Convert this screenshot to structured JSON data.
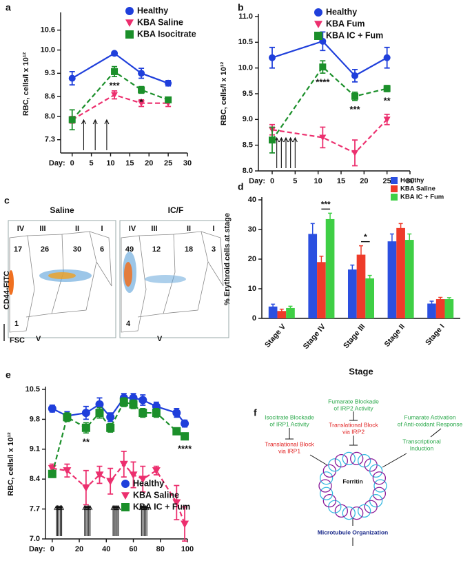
{
  "chart_data": [
    {
      "type": "line",
      "panel": "a",
      "x_label": "Day:",
      "y_label": "RBC, cells/l x 10¹²",
      "x": [
        0,
        11,
        18,
        25
      ],
      "xlim": [
        -3,
        30
      ],
      "xticks": [
        0,
        5,
        10,
        15,
        20,
        25,
        30
      ],
      "ylim": [
        6.9,
        11.05
      ],
      "yticks": [
        7.3,
        {
          "value": 8,
          "label": "8.0"
        },
        8.6,
        9.3,
        {
          "value": 10,
          "label": "10.0"
        },
        10.6
      ],
      "series": [
        {
          "name": "Healthy",
          "color": "#1f3fdb",
          "marker": "circle",
          "dashed": false,
          "values": [
            9.15,
            9.9,
            9.3,
            9.0
          ],
          "errors": [
            0.2,
            0.05,
            0.15,
            0.08
          ]
        },
        {
          "name": "KBA Saline",
          "color": "#ec2f6e",
          "marker": "triangle",
          "dashed": true,
          "values": [
            7.9,
            8.65,
            8.4,
            8.4
          ],
          "errors": [
            0.1,
            0.12,
            0.1,
            0.1
          ]
        },
        {
          "name": "KBA Isocitrate",
          "color": "#1b8f2a",
          "marker": "square",
          "dashed": true,
          "values": [
            7.9,
            9.35,
            8.8,
            8.5
          ],
          "errors": [
            0.3,
            0.15,
            0.1,
            0.05
          ]
        }
      ],
      "significance": [
        null,
        "***",
        "*",
        null
      ],
      "arrow_days": [
        3,
        6,
        9
      ]
    },
    {
      "type": "line",
      "panel": "b",
      "x_label": "Day:",
      "y_label": "RBC, cells/l x 10¹²",
      "x": [
        0,
        11,
        18,
        25
      ],
      "xlim": [
        -3,
        30
      ],
      "xticks": [
        0,
        5,
        10,
        15,
        20,
        25,
        30
      ],
      "ylim": [
        8,
        11
      ],
      "yticks": [
        {
          "value": 8,
          "label": "8.0"
        },
        8.5,
        {
          "value": 9,
          "label": "9.0"
        },
        9.5,
        {
          "value": 10,
          "label": "10.0"
        },
        10.5,
        {
          "value": 11,
          "label": "11.0"
        }
      ],
      "series": [
        {
          "name": "Healthy",
          "color": "#1f3fdb",
          "marker": "circle",
          "dashed": false,
          "values": [
            10.2,
            10.52,
            9.85,
            10.2
          ],
          "errors": [
            0.2,
            0.18,
            0.12,
            0.2
          ]
        },
        {
          "name": "KBA Fum",
          "color": "#ec2f6e",
          "marker": "triangle",
          "dashed": true,
          "values": [
            8.8,
            8.65,
            8.35,
            9.0
          ],
          "errors": [
            0.1,
            0.2,
            0.25,
            0.1
          ]
        },
        {
          "name": "KBA IC + Fum",
          "color": "#1b8f2a",
          "marker": "square",
          "dashed": true,
          "values": [
            8.6,
            10.02,
            9.45,
            9.6
          ],
          "errors": [
            0.25,
            0.12,
            0.08,
            0.06
          ]
        }
      ],
      "significance": [
        null,
        "****",
        "***",
        "**"
      ],
      "arrow_days": [
        1,
        2,
        3,
        4,
        5
      ]
    },
    {
      "type": "bar",
      "panel": "d",
      "x_label": "Stage",
      "y_label": "% Erythroid cells at stage",
      "categories": [
        "Stage V",
        "Stage IV",
        "Stage III",
        "Stage II",
        "Stage I"
      ],
      "ylim": [
        0,
        40
      ],
      "yticks": [
        0,
        10,
        20,
        30,
        40
      ],
      "series": [
        {
          "name": "Healthy",
          "color": "#2b4fe0",
          "values": [
            4,
            28.5,
            16.5,
            26,
            5
          ],
          "errors": [
            0.8,
            3.5,
            1.5,
            2.5,
            0.8
          ]
        },
        {
          "name": "KBA Saline",
          "color": "#ee3b2a",
          "values": [
            2.5,
            19,
            21.5,
            30.5,
            6.5
          ],
          "errors": [
            0.6,
            2,
            3,
            1.5,
            0.6
          ]
        },
        {
          "name": "KBA IC + Fum",
          "color": "#3fcf45",
          "values": [
            3.5,
            33.5,
            13.5,
            26.5,
            6.5
          ],
          "errors": [
            0.6,
            2,
            1,
            2,
            0.5
          ]
        }
      ],
      "significance": [
        null,
        "***",
        "*",
        null,
        null
      ]
    },
    {
      "type": "line",
      "panel": "e",
      "x_label": "Day:",
      "y_label": "RBC, cells/l x 10¹²",
      "x": [
        0,
        11,
        25,
        35,
        43,
        53,
        60,
        67,
        77,
        92,
        98
      ],
      "xlim": [
        -5,
        100
      ],
      "xticks": [
        0,
        20,
        40,
        60,
        80,
        100
      ],
      "ylim": [
        7,
        10.5
      ],
      "yticks": [
        {
          "value": 7,
          "label": "7.0"
        },
        7.7,
        8.4,
        9.1,
        9.8,
        10.5
      ],
      "series": [
        {
          "name": "Healthy",
          "color": "#1f3fdb",
          "marker": "circle",
          "dashed": false,
          "values": [
            10.05,
            9.88,
            9.95,
            10.15,
            9.85,
            10.3,
            10.3,
            10.25,
            10.1,
            9.95,
            9.7
          ],
          "errors": [
            0.08,
            0.1,
            0.15,
            0.15,
            0.1,
            0.1,
            0.1,
            0.12,
            0.1,
            0.1,
            0.08
          ]
        },
        {
          "name": "KBA Saline",
          "color": "#ec2f6e",
          "marker": "triangle",
          "dashed": true,
          "values": [
            8.65,
            8.6,
            8.2,
            8.5,
            8.35,
            8.75,
            8.5,
            8.4,
            8.6,
            7.85,
            7.35
          ],
          "errors": [
            0.1,
            0.15,
            0.4,
            0.2,
            0.3,
            0.3,
            0.3,
            0.3,
            0.1,
            0.4,
            0.4
          ]
        },
        {
          "name": "KBA IC + Fum",
          "color": "#1b8f2a",
          "marker": "square",
          "dashed": true,
          "values": [
            8.52,
            9.85,
            9.6,
            9.95,
            9.6,
            10.2,
            10.15,
            9.95,
            9.95,
            9.52,
            9.4
          ],
          "errors": [
            0.08,
            0.1,
            0.12,
            0.12,
            0.1,
            0.1,
            0.1,
            0.1,
            0.1,
            0.06,
            0.08
          ]
        }
      ],
      "significance": [
        null,
        null,
        "**",
        null,
        null,
        null,
        null,
        null,
        null,
        null,
        "****"
      ],
      "arrow_days": [
        3,
        4,
        5,
        6,
        7,
        24,
        25,
        26,
        27,
        28,
        45,
        46,
        47,
        48,
        49,
        66,
        67,
        68,
        69,
        70
      ]
    }
  ],
  "flow": {
    "panel": "c",
    "y_label": "CD44-FITC",
    "x_label": "FSC",
    "v_label": "V",
    "plots": [
      {
        "title": "Saline",
        "stages": [
          "IV",
          "III",
          "II",
          "I"
        ],
        "percents": [
          17,
          26,
          30,
          6,
          1
        ]
      },
      {
        "title": "IC/F",
        "stages": [
          "IV",
          "III",
          "II",
          "I"
        ],
        "percents": [
          49,
          12,
          18,
          3,
          4
        ]
      }
    ]
  },
  "diagram": {
    "panel": "f",
    "nodes": [
      {
        "lines": [
          "Isocitrate Blockade",
          "of IRP1 Activity"
        ]
      },
      {
        "lines": [
          "Fumarate Blockade",
          "of IRP2 Activity"
        ]
      },
      {
        "lines": [
          "Fumarate Activation",
          "of Anti-oxidant Response"
        ]
      },
      {
        "lines": [
          "Translational Block",
          "via IRP1"
        ]
      },
      {
        "lines": [
          "Translational Block",
          "via IRP2"
        ]
      },
      {
        "lines": [
          "Transcriptional",
          "Induction"
        ]
      },
      {
        "lines": [
          "Ferritin"
        ]
      },
      {
        "lines": [
          "Microtubule Organization"
        ]
      }
    ]
  }
}
